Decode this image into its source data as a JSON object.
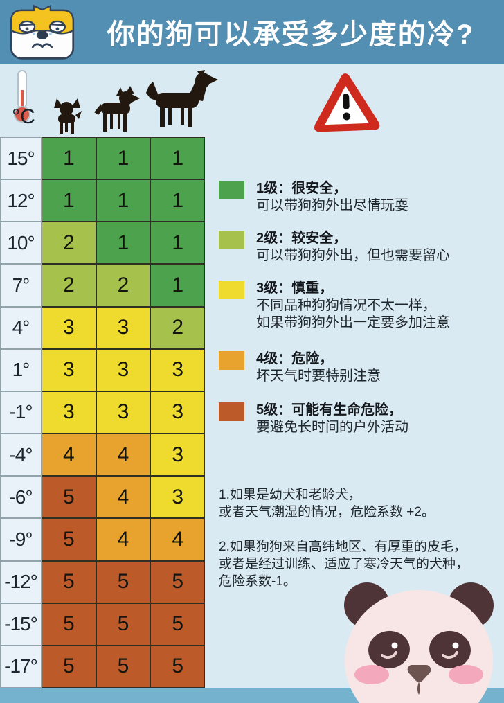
{
  "header": {
    "title": "你的狗可以承受多少度的冷?",
    "bg_color": "#538FB2",
    "mascot_icon": "sad-dog-face-icon"
  },
  "table_header": {
    "unit": "°C",
    "thermometer_icon": "thermometer-icon",
    "column_icons": [
      "small-dog-icon",
      "medium-dog-icon",
      "large-dog-icon"
    ],
    "warning_icon": "warning-triangle-icon"
  },
  "chart_data": {
    "type": "heatmap",
    "title": "你的狗可以承受多少度的冷?",
    "row_label_unit": "°C",
    "columns": [
      "small-dog",
      "medium-dog",
      "large-dog"
    ],
    "rows": [
      "15°",
      "12°",
      "10°",
      "7°",
      "4°",
      "1°",
      "-1°",
      "-4°",
      "-6°",
      "-9°",
      "-12°",
      "-15°",
      "-17°"
    ],
    "values": [
      [
        1,
        1,
        1
      ],
      [
        1,
        1,
        1
      ],
      [
        2,
        1,
        1
      ],
      [
        2,
        2,
        1
      ],
      [
        3,
        3,
        2
      ],
      [
        3,
        3,
        3
      ],
      [
        3,
        3,
        3
      ],
      [
        4,
        4,
        3
      ],
      [
        5,
        4,
        3
      ],
      [
        5,
        4,
        4
      ],
      [
        5,
        5,
        5
      ],
      [
        5,
        5,
        5
      ],
      [
        5,
        5,
        5
      ]
    ],
    "level_colors": {
      "1": "#4DA24D",
      "2": "#A6C24D",
      "3": "#EFDB2D",
      "4": "#E8A32E",
      "5": "#BD5A2A"
    },
    "legend_position": "right",
    "grid": true
  },
  "legend": [
    {
      "level": "1级：很安全，",
      "desc": "可以带狗狗外出尽情玩耍",
      "color": "#4DA24D"
    },
    {
      "level": "2级：较安全，",
      "desc": "可以带狗狗外出，但也需要留心",
      "color": "#A6C24D"
    },
    {
      "level": "3级：慎重，",
      "desc": "不同品种狗狗情况不太一样，\n如果带狗狗外出一定要多加注意",
      "color": "#EFDB2D"
    },
    {
      "level": "4级：危险，",
      "desc": "坏天气时要特别注意",
      "color": "#E8A32E"
    },
    {
      "level": "5级：可能有生命危险，",
      "desc": "要避免长时间的户外活动",
      "color": "#BD5A2A"
    }
  ],
  "notes": [
    {
      "text": "1.如果是幼犬和老龄犬，\n或者天气潮湿的情况，危险系数 +2。"
    },
    {
      "text": "2.如果狗狗来自高纬地区、有厚重的皮毛，\n或者是经过训练、适应了寒冷天气的犬种，\n危险系数-1。"
    }
  ],
  "footer": {
    "mascot_icon": "panda-face-icon",
    "bar_color": "#74B2CE"
  },
  "colors": {
    "page_bg": "#D9EAF2",
    "temp_cell_bg": "#E9F2F8",
    "warning_red": "#CE2A1E"
  }
}
